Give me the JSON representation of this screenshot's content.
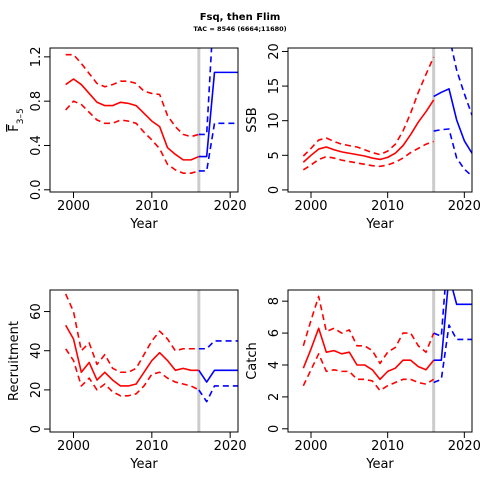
{
  "title": "Fsq, then Flim",
  "subtitle": "TAC = 8546 (6664;11680)",
  "colors": {
    "hist": "#ff0000",
    "proj": "#0000ff",
    "divider": "#cccccc",
    "axis": "#000000"
  },
  "chart_data": [
    {
      "type": "line",
      "name": "fbar",
      "ylabel_main": "F",
      "ylabel_sub": "3–5",
      "xlabel": "Year",
      "xlim": [
        1997,
        2021
      ],
      "ylim": [
        -0.02,
        1.28
      ],
      "xticks": [
        2000,
        2010,
        2020
      ],
      "yticks": [
        "0.0",
        "0.4",
        "0.8",
        "1.2"
      ],
      "ytick_values": [
        0,
        0.4,
        0.8,
        1.2
      ],
      "divider_year": 2016,
      "historical": {
        "x": [
          1999,
          2000,
          2001,
          2002,
          2003,
          2004,
          2005,
          2006,
          2007,
          2008,
          2009,
          2010,
          2011,
          2012,
          2013,
          2014,
          2015,
          2016
        ],
        "median": [
          0.95,
          1.0,
          0.95,
          0.87,
          0.79,
          0.76,
          0.76,
          0.79,
          0.78,
          0.76,
          0.69,
          0.62,
          0.57,
          0.38,
          0.32,
          0.27,
          0.27,
          0.3
        ],
        "lower": [
          0.72,
          0.8,
          0.77,
          0.7,
          0.63,
          0.6,
          0.6,
          0.63,
          0.62,
          0.6,
          0.52,
          0.45,
          0.37,
          0.23,
          0.18,
          0.15,
          0.15,
          0.17
        ],
        "upper": [
          1.22,
          1.22,
          1.14,
          1.05,
          0.96,
          0.93,
          0.95,
          0.98,
          0.98,
          0.96,
          0.89,
          0.87,
          0.86,
          0.67,
          0.57,
          0.5,
          0.48,
          0.5
        ]
      },
      "projection": {
        "x": [
          2016,
          2017,
          2018,
          2019,
          2020,
          2021
        ],
        "median": [
          0.3,
          0.3,
          1.06,
          1.06,
          1.06,
          1.06
        ],
        "lower": [
          0.17,
          0.17,
          0.6,
          0.6,
          0.6,
          0.6
        ],
        "upper": [
          0.5,
          0.5,
          1.75,
          1.75,
          1.75,
          1.75
        ]
      }
    },
    {
      "type": "line",
      "name": "ssb",
      "ylabel_main": "SSB",
      "ylabel_sub": "",
      "xlabel": "Year",
      "xlim": [
        1997,
        2021
      ],
      "ylim": [
        -0.3,
        20.5
      ],
      "xticks": [
        2000,
        2010,
        2020
      ],
      "yticks": [
        "0",
        "5",
        "10",
        "15",
        "20"
      ],
      "ytick_values": [
        0,
        5,
        10,
        15,
        20
      ],
      "divider_year": 2016,
      "historical": {
        "x": [
          1999,
          2000,
          2001,
          2002,
          2003,
          2004,
          2005,
          2006,
          2007,
          2008,
          2009,
          2010,
          2011,
          2012,
          2013,
          2014,
          2015,
          2016
        ],
        "median": [
          4.0,
          5.0,
          5.9,
          6.2,
          5.8,
          5.5,
          5.3,
          5.1,
          4.9,
          4.6,
          4.4,
          4.7,
          5.3,
          6.4,
          8.0,
          9.8,
          11.3,
          13.0
        ],
        "lower": [
          2.9,
          3.6,
          4.4,
          4.8,
          4.6,
          4.3,
          4.1,
          3.9,
          3.7,
          3.5,
          3.4,
          3.6,
          4.0,
          4.6,
          5.4,
          6.0,
          6.6,
          7.0
        ],
        "upper": [
          4.9,
          6.0,
          7.2,
          7.5,
          7.0,
          6.6,
          6.4,
          6.2,
          5.8,
          5.4,
          5.1,
          5.6,
          6.6,
          8.5,
          11.1,
          14.1,
          16.7,
          19.2
        ]
      },
      "projection": {
        "x": [
          2016,
          2017,
          2018,
          2019,
          2020,
          2021
        ],
        "median": [
          13.5,
          14.1,
          14.6,
          10.1,
          7.1,
          5.3
        ],
        "lower": [
          8.5,
          8.7,
          8.8,
          4.6,
          3.0,
          2.0
        ],
        "upper": [
          20.5,
          21.5,
          22.3,
          17.3,
          13.9,
          10.8
        ]
      }
    },
    {
      "type": "line",
      "name": "recruitment",
      "ylabel_main": "Recruitment",
      "ylabel_sub": "",
      "xlabel": "Year",
      "xlim": [
        1997,
        2021
      ],
      "ylim": [
        -1.5,
        71
      ],
      "xticks": [
        2000,
        2010,
        2020
      ],
      "yticks": [
        "0",
        "20",
        "40",
        "60"
      ],
      "ytick_values": [
        0,
        20,
        40,
        60
      ],
      "divider_year": 2016,
      "historical": {
        "x": [
          1999,
          2000,
          2001,
          2002,
          2003,
          2004,
          2005,
          2006,
          2007,
          2008,
          2009,
          2010,
          2011,
          2012,
          2013,
          2014,
          2015,
          2016
        ],
        "median": [
          53,
          46,
          29,
          34,
          25,
          29,
          25,
          22,
          22,
          23,
          29,
          35,
          39,
          35,
          30,
          31,
          30,
          30
        ],
        "lower": [
          41,
          35,
          22,
          26,
          20,
          23,
          19,
          17,
          17,
          18,
          22,
          28,
          29,
          26,
          24,
          23,
          22,
          20
        ],
        "upper": [
          69,
          60,
          40,
          44,
          33,
          38,
          31,
          29,
          29,
          31,
          38,
          45,
          50,
          46,
          40,
          41,
          41,
          41
        ]
      },
      "projection": {
        "x": [
          2016,
          2017,
          2018,
          2019,
          2020,
          2021
        ],
        "median": [
          30,
          24,
          30,
          30,
          30,
          30
        ],
        "lower": [
          20,
          14,
          22,
          22,
          22,
          22
        ],
        "upper": [
          41,
          41,
          45,
          45,
          45,
          45
        ]
      }
    },
    {
      "type": "line",
      "name": "catch",
      "ylabel_main": "Catch",
      "ylabel_sub": "",
      "xlabel": "Year",
      "xlim": [
        1997,
        2021
      ],
      "ylim": [
        -0.2,
        8.7
      ],
      "xticks": [
        2000,
        2010,
        2020
      ],
      "yticks": [
        "0",
        "2",
        "4",
        "6",
        "8"
      ],
      "ytick_values": [
        0,
        2,
        4,
        6,
        8
      ],
      "divider_year": 2016,
      "historical": {
        "x": [
          1999,
          2000,
          2001,
          2002,
          2003,
          2004,
          2005,
          2006,
          2007,
          2008,
          2009,
          2010,
          2011,
          2012,
          2013,
          2014,
          2015,
          2016
        ],
        "median": [
          3.8,
          5.0,
          6.3,
          4.8,
          4.9,
          4.7,
          4.8,
          4.0,
          4.0,
          3.7,
          3.1,
          3.6,
          3.8,
          4.3,
          4.3,
          3.9,
          3.7,
          4.3
        ],
        "lower": [
          2.7,
          3.7,
          4.7,
          3.6,
          3.7,
          3.6,
          3.6,
          3.1,
          3.1,
          3.0,
          2.4,
          2.7,
          2.9,
          3.1,
          3.1,
          2.9,
          2.8,
          3.1
        ],
        "upper": [
          5.2,
          6.8,
          8.3,
          6.1,
          6.3,
          6.0,
          6.2,
          5.2,
          5.2,
          4.9,
          4.1,
          4.8,
          5.1,
          6.0,
          6.0,
          5.2,
          4.8,
          6.0
        ]
      },
      "projection": {
        "x": [
          2016,
          2017,
          2018,
          2019,
          2020,
          2021
        ],
        "median": [
          4.3,
          4.3,
          9.6,
          7.8,
          7.8,
          7.8
        ],
        "lower": [
          2.9,
          3.1,
          6.5,
          5.6,
          5.6,
          5.6
        ],
        "upper": [
          6.0,
          5.8,
          12.0,
          12.0,
          12.0,
          12.0
        ]
      }
    }
  ]
}
